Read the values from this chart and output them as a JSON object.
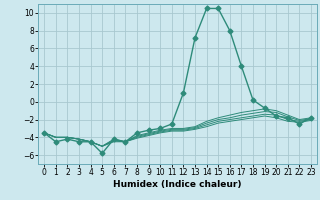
{
  "x": [
    0,
    1,
    2,
    3,
    4,
    5,
    6,
    7,
    8,
    9,
    10,
    11,
    12,
    13,
    14,
    15,
    16,
    17,
    18,
    19,
    20,
    21,
    22,
    23
  ],
  "series": [
    [
      -3.5,
      -4.5,
      -4.2,
      -4.5,
      -4.5,
      -5.8,
      -4.2,
      -4.5,
      -3.5,
      -3.2,
      -3.0,
      -2.5,
      1.0,
      7.2,
      10.5,
      10.5,
      8.0,
      4.0,
      0.2,
      -0.7,
      -1.6,
      -1.8,
      -2.5,
      -1.8
    ],
    [
      -3.5,
      -4.0,
      -4.0,
      -4.2,
      -4.5,
      -5.0,
      -4.2,
      -4.5,
      -3.8,
      -3.5,
      -3.2,
      -3.0,
      -3.0,
      -2.8,
      -2.2,
      -1.8,
      -1.5,
      -1.2,
      -1.0,
      -0.8,
      -1.0,
      -1.5,
      -2.0,
      -1.8
    ],
    [
      -3.5,
      -4.0,
      -4.0,
      -4.2,
      -4.5,
      -5.0,
      -4.3,
      -4.5,
      -3.9,
      -3.6,
      -3.3,
      -3.1,
      -3.1,
      -2.9,
      -2.4,
      -2.0,
      -1.8,
      -1.5,
      -1.3,
      -1.1,
      -1.2,
      -1.7,
      -2.1,
      -1.9
    ],
    [
      -3.5,
      -4.0,
      -4.0,
      -4.2,
      -4.5,
      -5.0,
      -4.4,
      -4.5,
      -4.0,
      -3.7,
      -3.4,
      -3.2,
      -3.2,
      -3.0,
      -2.6,
      -2.2,
      -2.0,
      -1.8,
      -1.6,
      -1.4,
      -1.5,
      -2.0,
      -2.2,
      -2.0
    ],
    [
      -3.5,
      -4.0,
      -4.0,
      -4.2,
      -4.5,
      -5.0,
      -4.5,
      -4.5,
      -4.1,
      -3.8,
      -3.5,
      -3.3,
      -3.3,
      -3.1,
      -2.8,
      -2.4,
      -2.2,
      -2.0,
      -1.8,
      -1.6,
      -1.8,
      -2.2,
      -2.3,
      -2.1
    ]
  ],
  "main_series_idx": 0,
  "color": "#2e8b7a",
  "bg_color": "#cde8ee",
  "grid_color": "#a8c8d0",
  "xlabel": "Humidex (Indice chaleur)",
  "ylim": [
    -7,
    11
  ],
  "xlim": [
    -0.5,
    23.5
  ],
  "yticks": [
    -6,
    -4,
    -2,
    0,
    2,
    4,
    6,
    8,
    10
  ],
  "xticks": [
    0,
    1,
    2,
    3,
    4,
    5,
    6,
    7,
    8,
    9,
    10,
    11,
    12,
    13,
    14,
    15,
    16,
    17,
    18,
    19,
    20,
    21,
    22,
    23
  ],
  "xlabel_fontsize": 6.5,
  "tick_fontsize": 5.5,
  "linewidth": 1.0,
  "markersize": 2.5,
  "secondary_linewidth": 0.7
}
